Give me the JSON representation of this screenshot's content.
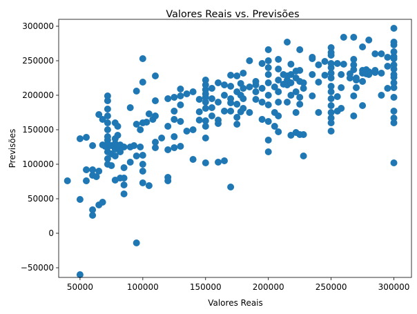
{
  "chart_data": {
    "type": "scatter",
    "title": "Valores Reais vs. Previsões",
    "xlabel": "Valores Reais",
    "ylabel": "Previsões",
    "xlim": [
      33000,
      314000
    ],
    "ylim": [
      -64000,
      310000
    ],
    "xticks": [
      50000,
      100000,
      150000,
      200000,
      250000,
      300000
    ],
    "yticks": [
      -50000,
      0,
      50000,
      100000,
      150000,
      200000,
      250000,
      300000
    ],
    "grid": false,
    "color": "#1f77b4",
    "series": [
      {
        "name": "Previsões",
        "points": [
          [
            40000,
            76000
          ],
          [
            50000,
            49000
          ],
          [
            50000,
            137000
          ],
          [
            50000,
            -60000
          ],
          [
            55000,
            76000
          ],
          [
            55000,
            92000
          ],
          [
            55000,
            139000
          ],
          [
            60000,
            92000
          ],
          [
            60000,
            127000
          ],
          [
            60000,
            26000
          ],
          [
            60000,
            34000
          ],
          [
            60000,
            84000
          ],
          [
            63000,
            82000
          ],
          [
            65000,
            90000
          ],
          [
            65000,
            172000
          ],
          [
            65000,
            41000
          ],
          [
            68000,
            45000
          ],
          [
            68000,
            128000
          ],
          [
            68000,
            165000
          ],
          [
            70000,
            126000
          ],
          [
            72000,
            108000
          ],
          [
            72000,
            118000
          ],
          [
            72000,
            125000
          ],
          [
            72000,
            130000
          ],
          [
            72000,
            135000
          ],
          [
            72000,
            140000
          ],
          [
            72000,
            150000
          ],
          [
            72000,
            160000
          ],
          [
            72000,
            170000
          ],
          [
            72000,
            180000
          ],
          [
            72000,
            192000
          ],
          [
            72000,
            199000
          ],
          [
            72000,
            100000
          ],
          [
            75000,
            127000
          ],
          [
            75000,
            98000
          ],
          [
            75000,
            115000
          ],
          [
            78000,
            77000
          ],
          [
            78000,
            112000
          ],
          [
            78000,
            122000
          ],
          [
            78000,
            130000
          ],
          [
            78000,
            137000
          ],
          [
            78000,
            160000
          ],
          [
            80000,
            125000
          ],
          [
            80000,
            142000
          ],
          [
            80000,
            155000
          ],
          [
            82000,
            80000
          ],
          [
            82000,
            118000
          ],
          [
            82000,
            128000
          ],
          [
            85000,
            57000
          ],
          [
            85000,
            70000
          ],
          [
            85000,
            80000
          ],
          [
            85000,
            95000
          ],
          [
            85000,
            125000
          ],
          [
            90000,
            103000
          ],
          [
            90000,
            125000
          ],
          [
            90000,
            182000
          ],
          [
            93000,
            127000
          ],
          [
            95000,
            112000
          ],
          [
            95000,
            206000
          ],
          [
            95000,
            158000
          ],
          [
            95000,
            -14000
          ],
          [
            98000,
            125000
          ],
          [
            98000,
            150000
          ],
          [
            100000,
            73000
          ],
          [
            100000,
            90000
          ],
          [
            100000,
            100000
          ],
          [
            100000,
            113000
          ],
          [
            100000,
            160000
          ],
          [
            100000,
            219000
          ],
          [
            100000,
            253000
          ],
          [
            103000,
            161000
          ],
          [
            105000,
            69000
          ],
          [
            105000,
            173000
          ],
          [
            108000,
            165000
          ],
          [
            110000,
            124000
          ],
          [
            110000,
            132000
          ],
          [
            110000,
            192000
          ],
          [
            110000,
            228000
          ],
          [
            110000,
            170000
          ],
          [
            115000,
            138000
          ],
          [
            120000,
            76000
          ],
          [
            120000,
            81000
          ],
          [
            120000,
            121000
          ],
          [
            120000,
            155000
          ],
          [
            120000,
            195000
          ],
          [
            125000,
            124000
          ],
          [
            125000,
            140000
          ],
          [
            125000,
            165000
          ],
          [
            125000,
            177000
          ],
          [
            125000,
            197000
          ],
          [
            130000,
            126000
          ],
          [
            130000,
            162000
          ],
          [
            130000,
            186000
          ],
          [
            130000,
            199000
          ],
          [
            130000,
            209000
          ],
          [
            135000,
            148000
          ],
          [
            135000,
            202000
          ],
          [
            140000,
            107000
          ],
          [
            140000,
            150000
          ],
          [
            140000,
            205000
          ],
          [
            145000,
            164000
          ],
          [
            145000,
            176000
          ],
          [
            145000,
            194000
          ],
          [
            150000,
            102000
          ],
          [
            150000,
            138000
          ],
          [
            150000,
            155000
          ],
          [
            150000,
            163000
          ],
          [
            150000,
            181000
          ],
          [
            150000,
            190000
          ],
          [
            150000,
            202000
          ],
          [
            150000,
            208000
          ],
          [
            150000,
            215000
          ],
          [
            150000,
            222000
          ],
          [
            150000,
            197000
          ],
          [
            155000,
            170000
          ],
          [
            155000,
            182000
          ],
          [
            155000,
            195000
          ],
          [
            155000,
            210000
          ],
          [
            160000,
            103000
          ],
          [
            160000,
            159000
          ],
          [
            160000,
            164000
          ],
          [
            160000,
            190000
          ],
          [
            160000,
            218000
          ],
          [
            165000,
            105000
          ],
          [
            165000,
            177000
          ],
          [
            165000,
            200000
          ],
          [
            165000,
            215000
          ],
          [
            170000,
            67000
          ],
          [
            170000,
            177000
          ],
          [
            170000,
            189000
          ],
          [
            170000,
            195000
          ],
          [
            170000,
            213000
          ],
          [
            170000,
            229000
          ],
          [
            175000,
            158000
          ],
          [
            175000,
            168000
          ],
          [
            175000,
            187000
          ],
          [
            175000,
            205000
          ],
          [
            175000,
            228000
          ],
          [
            178000,
            176000
          ],
          [
            178000,
            200000
          ],
          [
            178000,
            217000
          ],
          [
            180000,
            181000
          ],
          [
            180000,
            195000
          ],
          [
            180000,
            210000
          ],
          [
            180000,
            232000
          ],
          [
            185000,
            212000
          ],
          [
            185000,
            250000
          ],
          [
            185000,
            175000
          ],
          [
            190000,
            194000
          ],
          [
            190000,
            205000
          ],
          [
            190000,
            215000
          ],
          [
            190000,
            220000
          ],
          [
            195000,
            165000
          ],
          [
            195000,
            190000
          ],
          [
            195000,
            210000
          ],
          [
            195000,
            246000
          ],
          [
            200000,
            118000
          ],
          [
            200000,
            135000
          ],
          [
            200000,
            162000
          ],
          [
            200000,
            186000
          ],
          [
            200000,
            200000
          ],
          [
            200000,
            218000
          ],
          [
            200000,
            230000
          ],
          [
            200000,
            240000
          ],
          [
            200000,
            266000
          ],
          [
            200000,
            250000
          ],
          [
            205000,
            155000
          ],
          [
            205000,
            175000
          ],
          [
            205000,
            212000
          ],
          [
            208000,
            147000
          ],
          [
            208000,
            170000
          ],
          [
            208000,
            190000
          ],
          [
            208000,
            205000
          ],
          [
            208000,
            222000
          ],
          [
            208000,
            238000
          ],
          [
            208000,
            252000
          ],
          [
            212000,
            216000
          ],
          [
            212000,
            230000
          ],
          [
            215000,
            190000
          ],
          [
            215000,
            215000
          ],
          [
            215000,
            222000
          ],
          [
            215000,
            277000
          ],
          [
            215000,
            228000
          ],
          [
            218000,
            142000
          ],
          [
            218000,
            200000
          ],
          [
            218000,
            218000
          ],
          [
            218000,
            230000
          ],
          [
            218000,
            245000
          ],
          [
            222000,
            146000
          ],
          [
            222000,
            175000
          ],
          [
            222000,
            205000
          ],
          [
            222000,
            225000
          ],
          [
            222000,
            235000
          ],
          [
            225000,
            143000
          ],
          [
            225000,
            187000
          ],
          [
            225000,
            197000
          ],
          [
            225000,
            220000
          ],
          [
            225000,
            236000
          ],
          [
            225000,
            266000
          ],
          [
            228000,
            112000
          ],
          [
            228000,
            143000
          ],
          [
            228000,
            210000
          ],
          [
            228000,
            218000
          ],
          [
            235000,
            199000
          ],
          [
            235000,
            230000
          ],
          [
            235000,
            253000
          ],
          [
            235000,
            255000
          ],
          [
            240000,
            175000
          ],
          [
            240000,
            219000
          ],
          [
            240000,
            244000
          ],
          [
            245000,
            229000
          ],
          [
            245000,
            249000
          ],
          [
            250000,
            148000
          ],
          [
            250000,
            160000
          ],
          [
            250000,
            167000
          ],
          [
            250000,
            175000
          ],
          [
            250000,
            185000
          ],
          [
            250000,
            195000
          ],
          [
            250000,
            205000
          ],
          [
            250000,
            213000
          ],
          [
            250000,
            225000
          ],
          [
            250000,
            232000
          ],
          [
            250000,
            240000
          ],
          [
            250000,
            246000
          ],
          [
            250000,
            258000
          ],
          [
            250000,
            262000
          ],
          [
            250000,
            269000
          ],
          [
            255000,
            177000
          ],
          [
            255000,
            198000
          ],
          [
            255000,
            246000
          ],
          [
            258000,
            181000
          ],
          [
            258000,
            230000
          ],
          [
            258000,
            211000
          ],
          [
            260000,
            284000
          ],
          [
            260000,
            245000
          ],
          [
            265000,
            225000
          ],
          [
            265000,
            231000
          ],
          [
            268000,
            170000
          ],
          [
            268000,
            237000
          ],
          [
            268000,
            244000
          ],
          [
            268000,
            252000
          ],
          [
            268000,
            284000
          ],
          [
            268000,
            199000
          ],
          [
            270000,
            211000
          ],
          [
            270000,
            225000
          ],
          [
            270000,
            222000
          ],
          [
            275000,
            185000
          ],
          [
            275000,
            220000
          ],
          [
            275000,
            232000
          ],
          [
            275000,
            236000
          ],
          [
            275000,
            270000
          ],
          [
            278000,
            231000
          ],
          [
            278000,
            237000
          ],
          [
            280000,
            230000
          ],
          [
            280000,
            280000
          ],
          [
            280000,
            234000
          ],
          [
            285000,
            233000
          ],
          [
            285000,
            236000
          ],
          [
            285000,
            260000
          ],
          [
            290000,
            200000
          ],
          [
            290000,
            232000
          ],
          [
            290000,
            260000
          ],
          [
            295000,
            210000
          ],
          [
            295000,
            242000
          ],
          [
            295000,
            255000
          ],
          [
            300000,
            102000
          ],
          [
            300000,
            160000
          ],
          [
            300000,
            167000
          ],
          [
            300000,
            177000
          ],
          [
            300000,
            197000
          ],
          [
            300000,
            211000
          ],
          [
            300000,
            218000
          ],
          [
            300000,
            226000
          ],
          [
            300000,
            230000
          ],
          [
            300000,
            238000
          ],
          [
            300000,
            244000
          ],
          [
            300000,
            253000
          ],
          [
            300000,
            256000
          ],
          [
            300000,
            263000
          ],
          [
            300000,
            273000
          ],
          [
            300000,
            277000
          ],
          [
            300000,
            297000
          ]
        ]
      }
    ]
  }
}
